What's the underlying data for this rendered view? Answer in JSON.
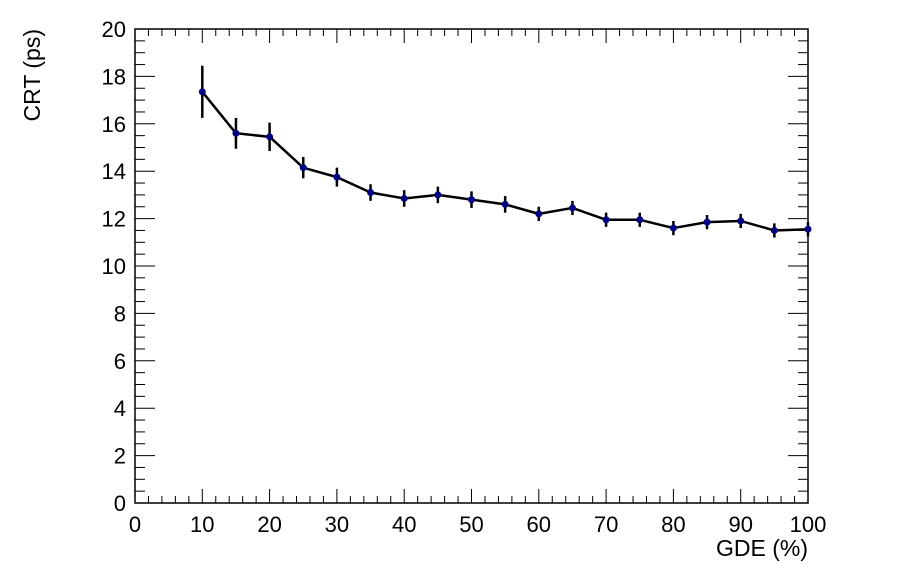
{
  "chart_data": {
    "type": "line",
    "title": "",
    "xlabel": "GDE (%)",
    "ylabel": "CRT (ps)",
    "xlim": [
      0,
      100
    ],
    "ylim": [
      0,
      20
    ],
    "x_ticks": [
      0,
      10,
      20,
      30,
      40,
      50,
      60,
      70,
      80,
      90,
      100
    ],
    "y_ticks": [
      0,
      2,
      4,
      6,
      8,
      10,
      12,
      14,
      16,
      18,
      20
    ],
    "grid": false,
    "legend": "none",
    "line_color": "#000000",
    "marker_color": "#000080",
    "series": [
      {
        "x": [
          10,
          15,
          20,
          25,
          30,
          35,
          40,
          45,
          50,
          55,
          60,
          65,
          70,
          75,
          80,
          85,
          90,
          95,
          100
        ],
        "y": [
          17.35,
          15.6,
          15.45,
          14.15,
          13.75,
          13.1,
          12.85,
          13.0,
          12.8,
          12.6,
          12.2,
          12.45,
          11.95,
          11.95,
          11.6,
          11.85,
          11.9,
          11.5,
          11.55
        ],
        "yerr": [
          1.1,
          0.65,
          0.6,
          0.45,
          0.4,
          0.35,
          0.35,
          0.35,
          0.35,
          0.35,
          0.3,
          0.3,
          0.3,
          0.3,
          0.3,
          0.3,
          0.3,
          0.3,
          0.3
        ]
      }
    ]
  }
}
